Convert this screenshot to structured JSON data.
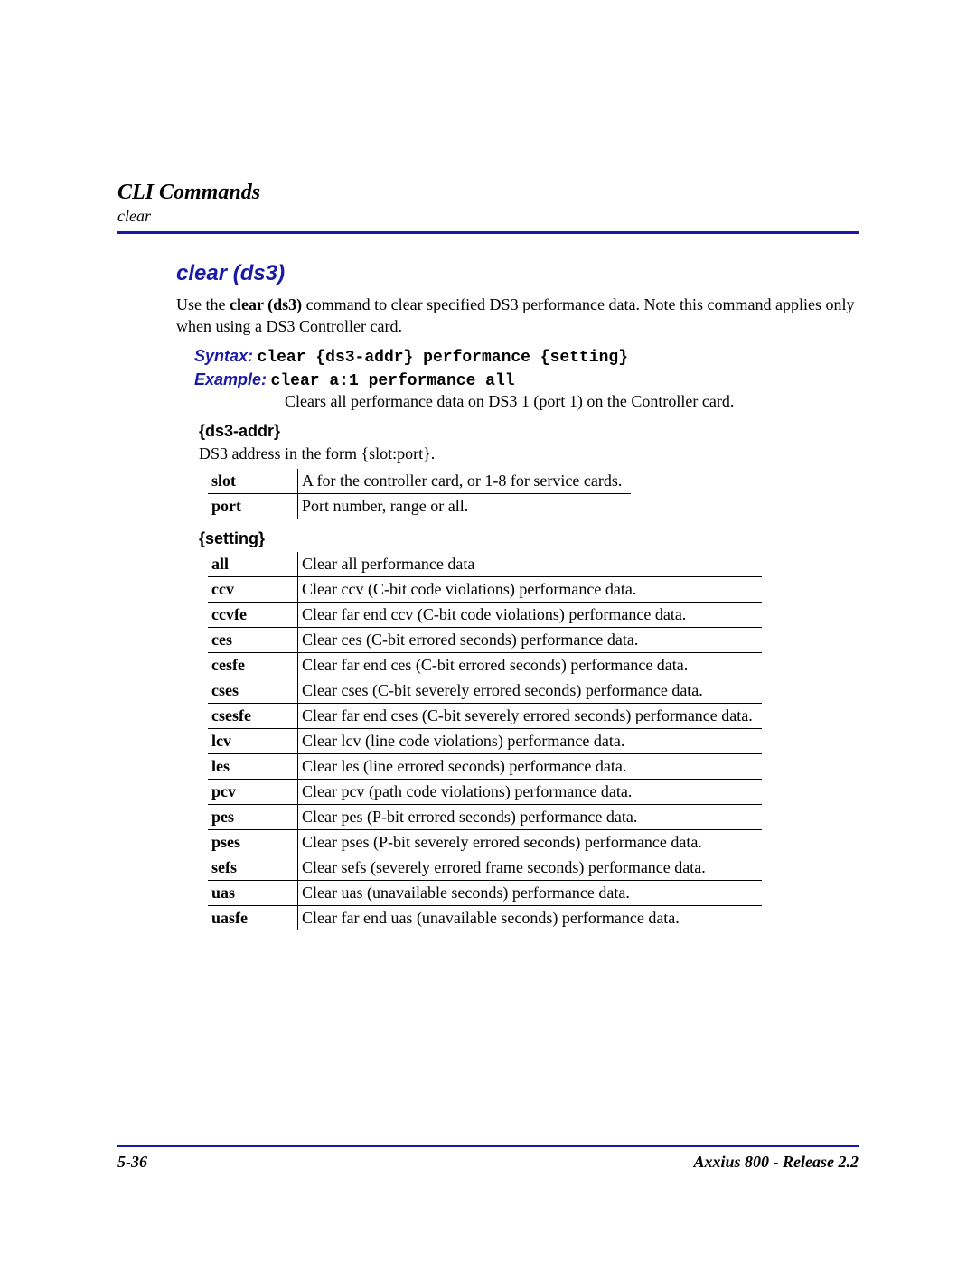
{
  "header": {
    "title": "CLI Commands",
    "sub": "clear"
  },
  "section": {
    "title": "clear (ds3)",
    "intro_pre": "Use the ",
    "intro_bold": "clear (ds3)",
    "intro_post": " command to clear specified DS3 performance data. Note this command applies only when using a DS3 Controller card.",
    "syntax_label": "Syntax:",
    "syntax_text": "clear {ds3-addr} performance {setting}",
    "example_label": "Example:",
    "example_text": "clear a:1 performance all",
    "example_desc": "Clears all performance data on DS3 1 (port 1) on the Controller card."
  },
  "ds3addr": {
    "head": "{ds3-addr}",
    "desc": "DS3 address in the form {slot:port}.",
    "rows": [
      {
        "k": "slot",
        "v": "A for the controller card, or 1-8 for service cards."
      },
      {
        "k": "port",
        "v": "Port number, range or all."
      }
    ]
  },
  "setting": {
    "head": "{setting}",
    "rows": [
      {
        "k": "all",
        "v": "Clear all performance data"
      },
      {
        "k": "ccv",
        "v": "Clear ccv (C-bit code violations) performance data."
      },
      {
        "k": "ccvfe",
        "v": "Clear far end ccv (C-bit code violations) performance data."
      },
      {
        "k": "ces",
        "v": "Clear ces (C-bit errored seconds) performance data."
      },
      {
        "k": "cesfe",
        "v": "Clear far end ces (C-bit errored seconds) performance data."
      },
      {
        "k": "cses",
        "v": "Clear cses (C-bit severely errored seconds) performance data."
      },
      {
        "k": "csesfe",
        "v": "Clear far end cses (C-bit severely errored seconds) performance data."
      },
      {
        "k": "lcv",
        "v": "Clear lcv (line code violations) performance data."
      },
      {
        "k": "les",
        "v": "Clear les (line errored seconds) performance data."
      },
      {
        "k": "pcv",
        "v": "Clear pcv (path code violations) performance data."
      },
      {
        "k": "pes",
        "v": "Clear pes (P-bit errored seconds) performance data."
      },
      {
        "k": "pses",
        "v": "Clear pses (P-bit severely errored seconds) performance data."
      },
      {
        "k": "sefs",
        "v": "Clear sefs (severely errored frame seconds) performance data."
      },
      {
        "k": "uas",
        "v": "Clear uas (unavailable seconds) performance data."
      },
      {
        "k": "uasfe",
        "v": "Clear far end uas (unavailable seconds) performance data."
      }
    ]
  },
  "footer": {
    "page": "5-36",
    "product": "Axxius 800 - Release 2.2"
  },
  "colors": {
    "accent": "#1a1aa8"
  }
}
